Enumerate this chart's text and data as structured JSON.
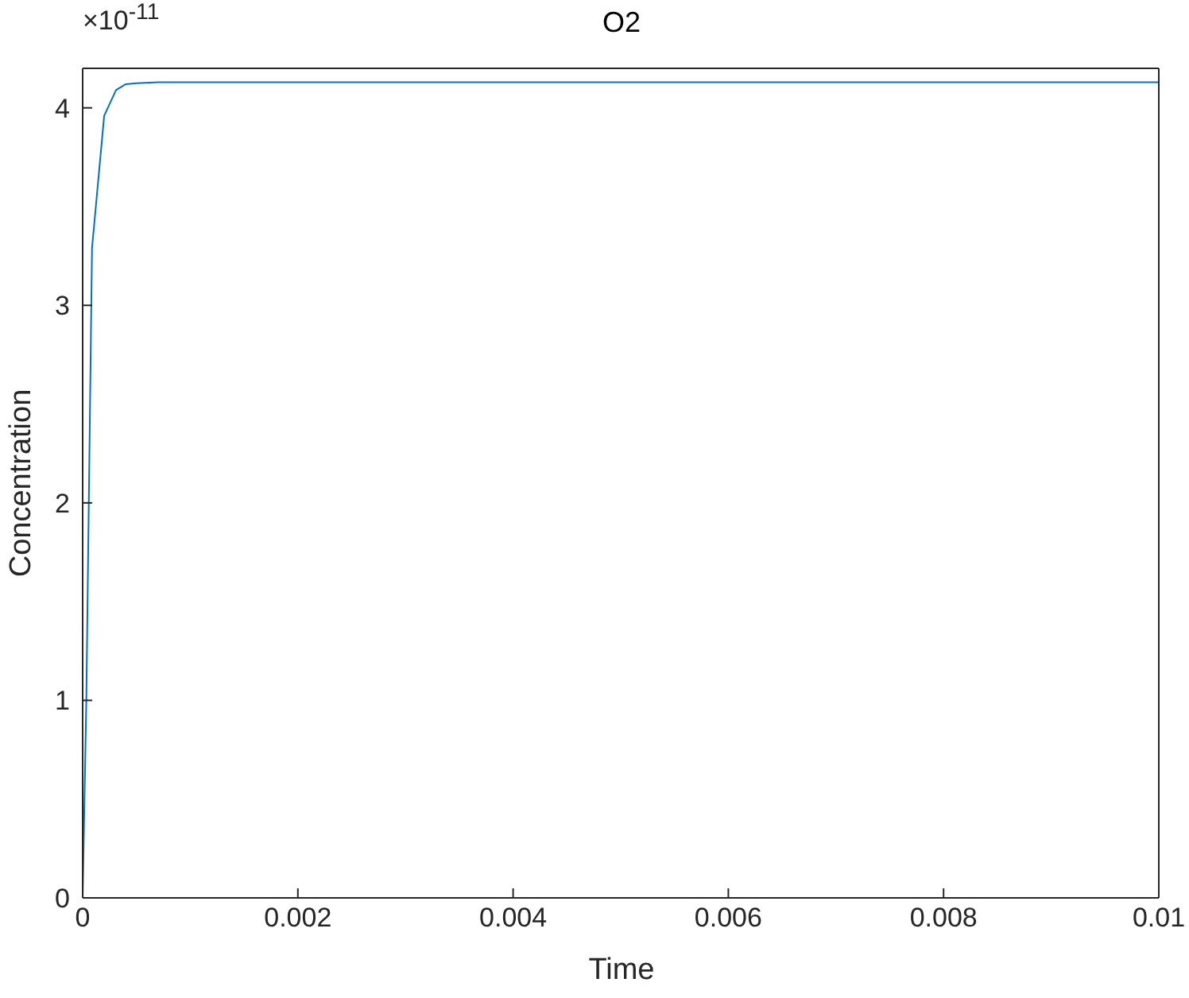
{
  "chart_data": {
    "type": "line",
    "title": "O2",
    "xlabel": "Time",
    "ylabel": "Concentration",
    "annotations": [
      "×10$^{-11}$"
    ],
    "x": [
      0,
      3.4e-05,
      8.7e-05,
      0.0002,
      0.00031,
      0.0004,
      0.0005,
      0.0007,
      0.001,
      0.002,
      0.004,
      0.006,
      0.008,
      0.01
    ],
    "series": [
      {
        "color": "#0072bd",
        "values": [
          0,
          1.0,
          3.29,
          3.96,
          4.09,
          4.12,
          4.125,
          4.13,
          4.13,
          4.13,
          4.13,
          4.13,
          4.13,
          4.13
        ]
      }
    ],
    "xlim": [
      0,
      0.01
    ],
    "xticks": [
      0,
      0.002,
      0.004,
      0.006,
      0.008,
      0.01
    ],
    "ylim": [
      0,
      4.2
    ],
    "yticks": [
      0,
      1,
      2,
      3,
      4
    ],
    "grid": false,
    "legend": false,
    "marker": "none",
    "line_style": "solid"
  }
}
